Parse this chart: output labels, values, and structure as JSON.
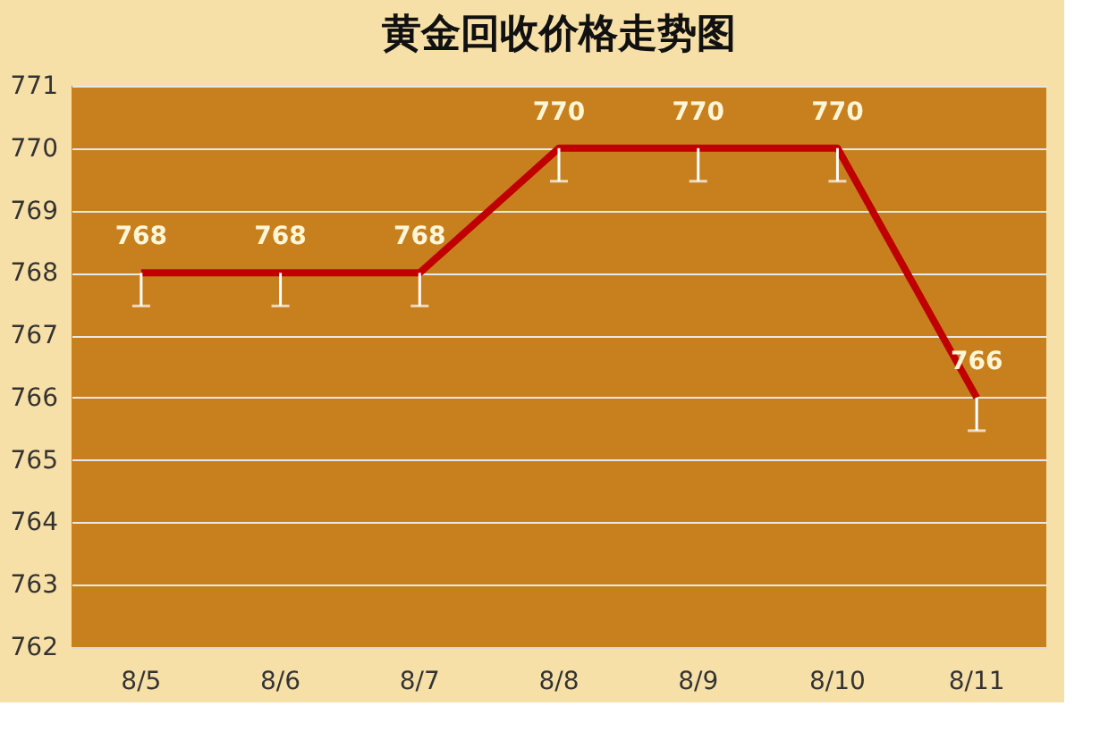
{
  "chart_data": {
    "type": "line",
    "title": "黄金回收价格走势图",
    "categories": [
      "8/5",
      "8/6",
      "8/7",
      "8/8",
      "8/9",
      "8/10",
      "8/11"
    ],
    "series": [
      {
        "color": "#c00000",
        "values": [
          768,
          768,
          768,
          770,
          770,
          770,
          766
        ],
        "errors": [
          [
            767.47,
            768
          ],
          [
            767.47,
            768
          ],
          [
            767.47,
            768
          ],
          [
            769.47,
            770
          ],
          [
            769.47,
            770
          ],
          [
            769.47,
            770
          ],
          [
            765.47,
            766
          ]
        ]
      }
    ],
    "ylim": [
      762,
      771
    ],
    "yticks": [
      762,
      763,
      764,
      765,
      766,
      767,
      768,
      769,
      770,
      771
    ],
    "grid": "y",
    "data_labels": true,
    "marker": "none",
    "line_style": "solid",
    "legend": false
  }
}
